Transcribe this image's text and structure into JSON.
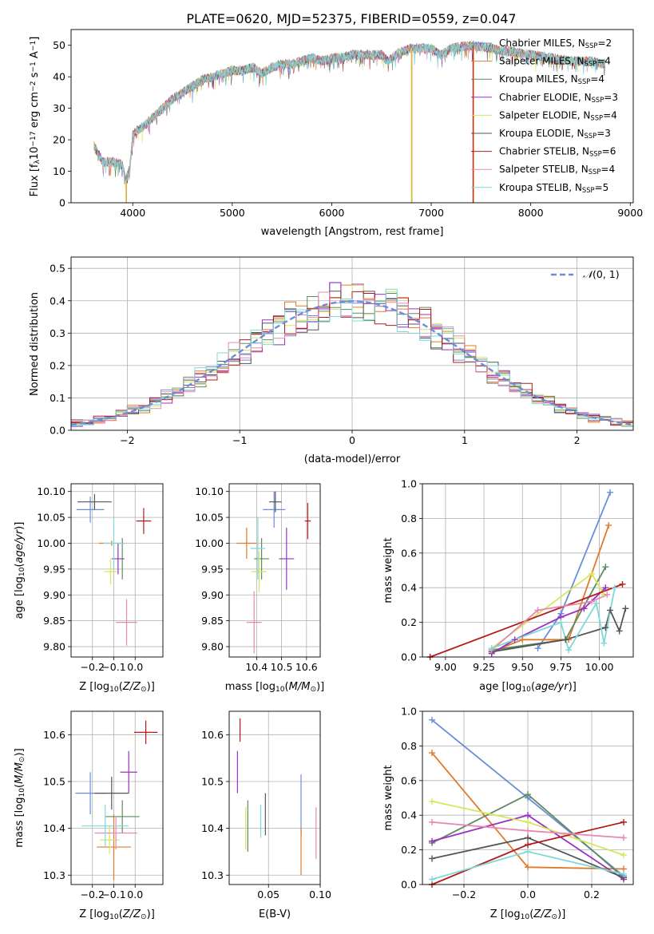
{
  "figure_title": "PLATE=0620, MJD=52375, FIBERID=0559, z=0.047",
  "colors": [
    "#6a8fd8",
    "#e07a2a",
    "#5e8b5e",
    "#9b30c2",
    "#d7e65a",
    "#555555",
    "#b31b1b",
    "#e887b5",
    "#7fd8d8"
  ],
  "chart_data": [
    {
      "id": "spectrum",
      "type": "line",
      "xlabel": "wavelength [Angstrom, rest frame]",
      "ylabel_main": "Flux [f",
      "ylabel_sub": "λ",
      "ylabel_rest": "10",
      "ylabel_exp1": "−17",
      "ylabel_unit": " erg cm",
      "ylabel_exp2": "−2",
      "ylabel_s": " s",
      "ylabel_exp3": "−1",
      "ylabel_A": " A",
      "ylabel_exp4": "−1",
      "ylabel_end": "]",
      "xlim": [
        3380,
        9030
      ],
      "ylim": [
        0,
        55
      ],
      "xticks": [
        4000,
        5000,
        6000,
        7000,
        8000,
        9000
      ],
      "yticks": [
        0,
        10,
        20,
        30,
        40,
        50
      ],
      "spectrum_start": 3610,
      "spectrum_end": 8750,
      "continuum_knots": [
        [
          3610,
          18
        ],
        [
          3700,
          13
        ],
        [
          3800,
          13
        ],
        [
          3900,
          12
        ],
        [
          3930,
          7
        ],
        [
          3970,
          11
        ],
        [
          4000,
          22
        ],
        [
          4100,
          24
        ],
        [
          4200,
          27
        ],
        [
          4300,
          30
        ],
        [
          4400,
          33
        ],
        [
          4500,
          35
        ],
        [
          4600,
          37
        ],
        [
          4700,
          39
        ],
        [
          4800,
          40
        ],
        [
          4900,
          41
        ],
        [
          5000,
          42
        ],
        [
          5100,
          42
        ],
        [
          5200,
          43
        ],
        [
          5300,
          41
        ],
        [
          5400,
          43
        ],
        [
          5500,
          44
        ],
        [
          5600,
          44
        ],
        [
          5700,
          45
        ],
        [
          5800,
          46
        ],
        [
          5900,
          45
        ],
        [
          6000,
          46
        ],
        [
          6100,
          46
        ],
        [
          6200,
          47
        ],
        [
          6300,
          47
        ],
        [
          6500,
          47
        ],
        [
          6560,
          45
        ],
        [
          6700,
          48
        ],
        [
          6800,
          49
        ],
        [
          7000,
          49
        ],
        [
          7100,
          47
        ],
        [
          7200,
          49
        ],
        [
          7400,
          50
        ],
        [
          7600,
          49
        ],
        [
          7800,
          48
        ],
        [
          8000,
          47
        ],
        [
          8200,
          46
        ],
        [
          8400,
          45
        ],
        [
          8600,
          45
        ],
        [
          8750,
          44
        ]
      ],
      "spikes": [
        {
          "x": 3930,
          "y": 0
        },
        {
          "x": 6800,
          "y": 0
        },
        {
          "x": 7420,
          "y": 0
        }
      ],
      "legend": [
        {
          "imf": "Chabrier MILES, N",
          "sub": "SSP",
          "n": "=2"
        },
        {
          "imf": "Salpeter MILES, N",
          "sub": "SSP",
          "n": "=4"
        },
        {
          "imf": "Kroupa MILES, N",
          "sub": "SSP",
          "n": "=4"
        },
        {
          "imf": "Chabrier ELODIE, N",
          "sub": "SSP",
          "n": "=3"
        },
        {
          "imf": "Salpeter ELODIE, N",
          "sub": "SSP",
          "n": "=4"
        },
        {
          "imf": "Kroupa ELODIE, N",
          "sub": "SSP",
          "n": "=3"
        },
        {
          "imf": "Chabrier STELIB, N",
          "sub": "SSP",
          "n": "=6"
        },
        {
          "imf": "Salpeter STELIB, N",
          "sub": "SSP",
          "n": "=4"
        },
        {
          "imf": "Kroupa STELIB, N",
          "sub": "SSP",
          "n": "=5"
        }
      ]
    },
    {
      "id": "residuals",
      "type": "histogram",
      "xlabel": "(data-model)/error",
      "ylabel": "Normed distribution",
      "xlim": [
        -2.5,
        2.5
      ],
      "ylim": [
        0,
        0.535
      ],
      "xticks": [
        -2,
        -1,
        0,
        1,
        2
      ],
      "xticklabels": [
        "−2",
        "−1",
        "0",
        "1",
        "2"
      ],
      "yticks": [
        0,
        0.1,
        0.2,
        0.3,
        0.4,
        0.5
      ],
      "yticklabels": [
        "0.0",
        "0.1",
        "0.2",
        "0.3",
        "0.4",
        "0.5"
      ],
      "bin_width": 0.1,
      "gaussian_label": "(0, 1)",
      "gaussian_symbol": "𝒩"
    },
    {
      "id": "age_vs_Z",
      "type": "errorbar",
      "xlabel_main": "Z [log",
      "xlabel_sub": "10",
      "xlabel_rest": "(Z/Z",
      "xlabel_sun": "⊙",
      "xlabel_end": ")]",
      "ylabel": "age  [log10(age/yr)]",
      "xlim": [
        -0.3,
        0.13
      ],
      "ylim": [
        9.78,
        10.115
      ],
      "xticks": [
        -0.2,
        -0.1,
        0.0
      ],
      "xticklabels": [
        "−0.2",
        "−0.1",
        "0.0"
      ],
      "yticks": [
        9.8,
        9.85,
        9.9,
        9.95,
        10.0,
        10.05,
        10.1
      ],
      "yticklabels": [
        "9.80",
        "9.85",
        "9.90",
        "9.95",
        "10.00",
        "10.05",
        "10.10"
      ],
      "points": [
        {
          "x": -0.21,
          "y": 10.065,
          "xerr": 0.065,
          "yerr": 0.025,
          "c": 0
        },
        {
          "x": -0.11,
          "y": 10.0,
          "xerr": 0.06,
          "yerr": 0.005,
          "c": 1
        },
        {
          "x": -0.06,
          "y": 9.97,
          "xerr": 0.0,
          "yerr": 0.04,
          "c": 2
        },
        {
          "x": -0.08,
          "y": 9.97,
          "xerr": 0.03,
          "yerr": 0.03,
          "c": 3
        },
        {
          "x": -0.115,
          "y": 9.945,
          "xerr": 0.03,
          "yerr": 0.025,
          "c": 4
        },
        {
          "x": -0.19,
          "y": 10.08,
          "xerr": 0.08,
          "yerr": 0.015,
          "c": 5
        },
        {
          "x": 0.04,
          "y": 10.043,
          "xerr": 0.035,
          "yerr": 0.025,
          "c": 6
        },
        {
          "x": -0.04,
          "y": 9.847,
          "xerr": 0.05,
          "yerr": 0.045,
          "c": 7
        },
        {
          "x": -0.1,
          "y": 10.0,
          "xerr": 0.05,
          "yerr": 0.05,
          "c": 8
        }
      ]
    },
    {
      "id": "age_vs_mass",
      "type": "errorbar",
      "xlabel_main": "mass [log",
      "xlabel_sub": "10",
      "xlabel_rest": "(M/M",
      "xlabel_sun": "⊙",
      "xlabel_end": ")]",
      "xlim": [
        10.29,
        10.655
      ],
      "ylim": [
        9.78,
        10.115
      ],
      "xticks": [
        10.4,
        10.5,
        10.6
      ],
      "xticklabels": [
        "10.4",
        "10.5",
        "10.6"
      ],
      "yticks": [
        9.8,
        9.85,
        9.9,
        9.95,
        10.0,
        10.05,
        10.1
      ],
      "yticklabels": [
        "9.80",
        "9.85",
        "9.90",
        "9.95",
        "10.00",
        "10.05",
        "10.10"
      ],
      "points": [
        {
          "x": 10.47,
          "y": 10.065,
          "xerr": 0.045,
          "yerr": 0.035,
          "c": 0
        },
        {
          "x": 10.36,
          "y": 10.0,
          "xerr": 0.04,
          "yerr": 0.03,
          "c": 1
        },
        {
          "x": 10.42,
          "y": 9.97,
          "xerr": 0.03,
          "yerr": 0.04,
          "c": 2
        },
        {
          "x": 10.52,
          "y": 9.97,
          "xerr": 0.03,
          "yerr": 0.06,
          "c": 3
        },
        {
          "x": 10.41,
          "y": 9.945,
          "xerr": 0.03,
          "yerr": 0.04,
          "c": 4
        },
        {
          "x": 10.475,
          "y": 10.08,
          "xerr": 0.025,
          "yerr": 0.02,
          "c": 5
        },
        {
          "x": 10.605,
          "y": 10.043,
          "xerr": 0.012,
          "yerr": 0.035,
          "c": 6
        },
        {
          "x": 10.39,
          "y": 9.847,
          "xerr": 0.03,
          "yerr": 0.06,
          "c": 7
        },
        {
          "x": 10.405,
          "y": 9.99,
          "xerr": 0.03,
          "yerr": 0.06,
          "c": 8
        }
      ]
    },
    {
      "id": "weight_vs_age",
      "type": "line",
      "xlabel_main": "age  [log",
      "xlabel_sub": "10",
      "xlabel_rest": "(age/yr)]",
      "ylabel": "mass weight",
      "xlim": [
        8.85,
        10.22
      ],
      "ylim": [
        0,
        1.0
      ],
      "xticks": [
        9.0,
        9.25,
        9.5,
        9.75,
        10.0
      ],
      "xticklabels": [
        "9.00",
        "9.25",
        "9.50",
        "9.75",
        "10.00"
      ],
      "yticks": [
        0,
        0.2,
        0.4,
        0.6,
        0.8,
        1.0
      ],
      "yticklabels": [
        "0.0",
        "0.2",
        "0.4",
        "0.6",
        "0.8",
        "1.0"
      ],
      "series": [
        {
          "c": 0,
          "x": [
            9.6,
            9.75,
            10.07
          ],
          "y": [
            0.05,
            0.25,
            0.95
          ]
        },
        {
          "c": 1,
          "x": [
            9.3,
            9.5,
            9.8,
            10.06
          ],
          "y": [
            0.03,
            0.1,
            0.1,
            0.76
          ]
        },
        {
          "c": 2,
          "x": [
            9.3,
            9.78,
            10.04
          ],
          "y": [
            0.04,
            0.1,
            0.52
          ]
        },
        {
          "c": 3,
          "x": [
            9.3,
            9.45,
            9.75,
            9.9,
            10.04
          ],
          "y": [
            0.02,
            0.1,
            0.23,
            0.28,
            0.4
          ]
        },
        {
          "c": 4,
          "x": [
            9.3,
            9.95,
            10.03
          ],
          "y": [
            0.05,
            0.48,
            0.36
          ]
        },
        {
          "c": 5,
          "x": [
            9.3,
            9.78,
            10.04,
            10.07,
            10.13,
            10.17
          ],
          "y": [
            0.03,
            0.1,
            0.17,
            0.27,
            0.15,
            0.28
          ]
        },
        {
          "c": 6,
          "x": [
            8.9,
            10.15
          ],
          "y": [
            0.0,
            0.42
          ]
        },
        {
          "c": 7,
          "x": [
            9.3,
            9.6,
            9.95,
            10.05
          ],
          "y": [
            0.04,
            0.27,
            0.32,
            0.36
          ]
        },
        {
          "c": 8,
          "x": [
            9.3,
            9.75,
            9.8,
            9.98,
            10.03,
            10.1
          ],
          "y": [
            0.05,
            0.2,
            0.04,
            0.31,
            0.08,
            0.4
          ]
        }
      ]
    },
    {
      "id": "mass_vs_Z",
      "type": "errorbar",
      "xlabel_main": "Z [log",
      "xlabel_sub": "10",
      "xlabel_rest": "(Z/Z",
      "xlabel_sun": "⊙",
      "xlabel_end": ")]",
      "ylabel": "mass [log10(M/M⊙)]",
      "xlim": [
        -0.3,
        0.13
      ],
      "ylim": [
        10.28,
        10.65
      ],
      "xticks": [
        -0.2,
        -0.1,
        0.0
      ],
      "xticklabels": [
        "−0.2",
        "−0.1",
        "0.0"
      ],
      "yticks": [
        10.3,
        10.4,
        10.5,
        10.6
      ],
      "yticklabels": [
        "10.3",
        "10.4",
        "10.5",
        "10.6"
      ],
      "points": [
        {
          "x": -0.21,
          "y": 10.475,
          "xerr": 0.07,
          "yerr": 0.045,
          "c": 0
        },
        {
          "x": -0.1,
          "y": 10.36,
          "xerr": 0.08,
          "yerr": 0.07,
          "c": 1
        },
        {
          "x": -0.06,
          "y": 10.425,
          "xerr": 0.08,
          "yerr": 0.035,
          "c": 2
        },
        {
          "x": -0.03,
          "y": 10.52,
          "xerr": 0.04,
          "yerr": 0.045,
          "c": 3
        },
        {
          "x": -0.12,
          "y": 10.375,
          "xerr": 0.045,
          "yerr": 0.03,
          "c": 4
        },
        {
          "x": -0.11,
          "y": 10.475,
          "xerr": 0.08,
          "yerr": 0.035,
          "c": 5
        },
        {
          "x": 0.05,
          "y": 10.605,
          "xerr": 0.055,
          "yerr": 0.025,
          "c": 6
        },
        {
          "x": -0.09,
          "y": 10.39,
          "xerr": 0.1,
          "yerr": 0.035,
          "c": 7
        },
        {
          "x": -0.14,
          "y": 10.405,
          "xerr": 0.11,
          "yerr": 0.045,
          "c": 8
        }
      ]
    },
    {
      "id": "mass_vs_EBV",
      "type": "errorbar",
      "xlabel": "E(B-V)",
      "xlim": [
        0.012,
        0.1
      ],
      "ylim": [
        10.28,
        10.65
      ],
      "xticks": [
        0.05,
        0.1
      ],
      "xticklabels": [
        "0.05",
        "0.10"
      ],
      "yticks": [
        10.3,
        10.4,
        10.5,
        10.6
      ],
      "yticklabels": [
        "10.3",
        "10.4",
        "10.5",
        "10.6"
      ],
      "points": [
        {
          "x": 0.0815,
          "y": 10.45,
          "xerr": 0.0,
          "yerr": 0.065,
          "c": 0
        },
        {
          "x": 0.0815,
          "y": 10.35,
          "xerr": 0.0,
          "yerr": 0.05,
          "c": 1
        },
        {
          "x": 0.03,
          "y": 10.405,
          "xerr": 0.0,
          "yerr": 0.055,
          "c": 2
        },
        {
          "x": 0.02,
          "y": 10.52,
          "xerr": 0.0,
          "yerr": 0.045,
          "c": 3
        },
        {
          "x": 0.028,
          "y": 10.4,
          "xerr": 0.0,
          "yerr": 0.045,
          "c": 4
        },
        {
          "x": 0.047,
          "y": 10.43,
          "xerr": 0.0,
          "yerr": 0.045,
          "c": 5
        },
        {
          "x": 0.0225,
          "y": 10.61,
          "xerr": 0.0,
          "yerr": 0.025,
          "c": 6
        },
        {
          "x": 0.096,
          "y": 10.39,
          "xerr": 0.0,
          "yerr": 0.055,
          "c": 7
        },
        {
          "x": 0.0425,
          "y": 10.415,
          "xerr": 0.0,
          "yerr": 0.035,
          "c": 8
        }
      ]
    },
    {
      "id": "weight_vs_Z",
      "type": "line",
      "xlabel_main": "Z [log",
      "xlabel_sub": "10",
      "xlabel_rest": "(Z/Z",
      "xlabel_sun": "⊙",
      "xlabel_end": ")]",
      "ylabel": "mass weight",
      "xlim": [
        -0.33,
        0.33
      ],
      "ylim": [
        0,
        1.0
      ],
      "xticks": [
        -0.2,
        0.0,
        0.2
      ],
      "xticklabels": [
        "−0.2",
        "0.0",
        "0.2"
      ],
      "yticks": [
        0,
        0.2,
        0.4,
        0.6,
        0.8,
        1.0
      ],
      "yticklabels": [
        "0.0",
        "0.2",
        "0.4",
        "0.6",
        "0.8",
        "1.0"
      ],
      "series": [
        {
          "c": 0,
          "x": [
            -0.3,
            0.0,
            0.3
          ],
          "y": [
            0.95,
            0.5,
            0.05
          ]
        },
        {
          "c": 1,
          "x": [
            -0.3,
            0.0,
            0.3
          ],
          "y": [
            0.76,
            0.1,
            0.09
          ]
        },
        {
          "c": 2,
          "x": [
            -0.3,
            0.0,
            0.3
          ],
          "y": [
            0.24,
            0.52,
            0.04
          ]
        },
        {
          "c": 3,
          "x": [
            -0.3,
            0.0,
            0.3
          ],
          "y": [
            0.25,
            0.4,
            0.03
          ]
        },
        {
          "c": 4,
          "x": [
            -0.3,
            0.0,
            0.3
          ],
          "y": [
            0.48,
            0.36,
            0.17
          ]
        },
        {
          "c": 5,
          "x": [
            -0.3,
            0.0,
            0.3
          ],
          "y": [
            0.15,
            0.27,
            0.04
          ]
        },
        {
          "c": 6,
          "x": [
            -0.3,
            0.0,
            0.3
          ],
          "y": [
            0.0,
            0.23,
            0.36
          ]
        },
        {
          "c": 7,
          "x": [
            -0.3,
            0.0,
            0.3
          ],
          "y": [
            0.36,
            0.31,
            0.27
          ]
        },
        {
          "c": 8,
          "x": [
            -0.3,
            0.0,
            0.3
          ],
          "y": [
            0.03,
            0.19,
            0.06
          ]
        }
      ]
    }
  ]
}
